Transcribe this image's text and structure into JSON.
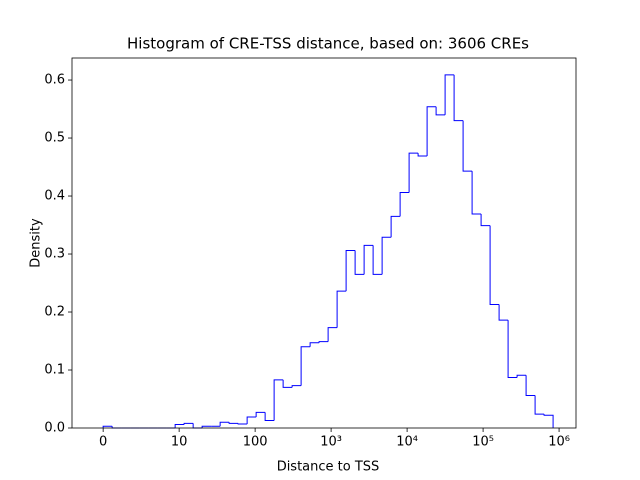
{
  "chart_data": {
    "type": "histogram",
    "title": "Histogram of CRE-TSS distance, based on: 3606 CREs",
    "x_label": "Distance to TSS",
    "y_label": "Density",
    "xscale": "symlog",
    "linthresh": 10,
    "color": "#0000ff",
    "bins": [
      0,
      1.184,
      2.368,
      3.553,
      4.737,
      5.921,
      7.105,
      8.289,
      9.474,
      11.63,
      15.29,
      20.07,
      26.37,
      34.64,
      45.5,
      59.76,
      78.48,
      103.1,
      135.4,
      177.8,
      233.6,
      306.8,
      402.9,
      529.2,
      695.1,
      913,
      1199,
      1575,
      2069,
      2718,
      3570,
      4690,
      6160,
      8091,
      10625,
      13955,
      18330,
      24078,
      31623,
      41536,
      54556,
      71665,
      94127,
      123640,
      162405,
      213306,
      280200,
      368000,
      483400,
      634900,
      834000
    ],
    "values": [
      0.003,
      0,
      0,
      0,
      0,
      0,
      0,
      0,
      0.006,
      0.008,
      0,
      0.003,
      0.003,
      0.01,
      0.008,
      0.007,
      0.019,
      0.027,
      0.013,
      0.083,
      0.07,
      0.073,
      0.14,
      0.147,
      0.149,
      0.173,
      0.236,
      0.306,
      0.265,
      0.315,
      0.265,
      0.329,
      0.365,
      0.406,
      0.474,
      0.469,
      0.554,
      0.54,
      0.609,
      0.53,
      0.443,
      0.369,
      0.349,
      0.213,
      0.186,
      0.087,
      0.091,
      0.056,
      0.024,
      0.022
    ],
    "xlim": [
      -4.1,
      1670000
    ],
    "xticks": [
      0,
      10,
      100,
      {
        "value": 1000,
        "label": "10³"
      },
      {
        "value": 10000,
        "label": "10⁴"
      },
      {
        "value": 100000,
        "label": "10⁵"
      },
      {
        "value": 1000000,
        "label": "10⁶"
      }
    ],
    "ylim": [
      0,
      0.638
    ],
    "yticks": [
      {
        "value": 0,
        "label": "0.0"
      },
      0.1,
      0.2,
      0.3,
      0.4,
      0.5,
      0.6
    ]
  }
}
